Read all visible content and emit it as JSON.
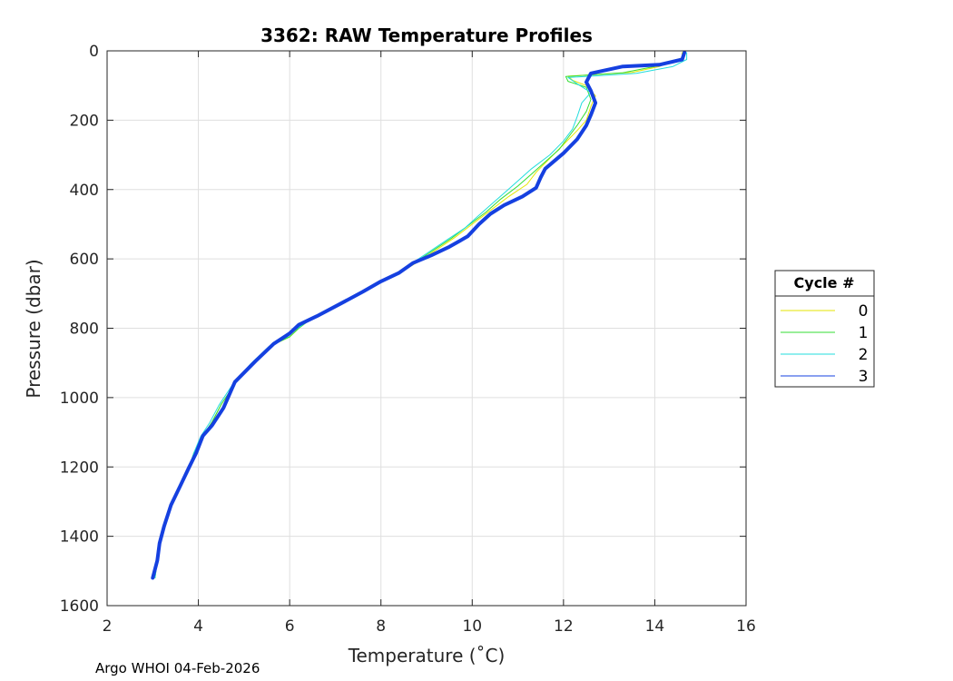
{
  "chart_data": {
    "type": "line",
    "title": "3362: RAW Temperature Profiles",
    "xlabel": "Temperature (˚C)",
    "ylabel": "Pressure (dbar)",
    "xlim": [
      2,
      16
    ],
    "ylim": [
      0,
      1600
    ],
    "y_reversed": true,
    "x_ticks": [
      2,
      4,
      6,
      8,
      10,
      12,
      14,
      16
    ],
    "y_ticks": [
      0,
      200,
      400,
      600,
      800,
      1000,
      1200,
      1400,
      1600
    ],
    "grid": true,
    "legend": {
      "title": "Cycle #",
      "placement": "right"
    },
    "series": [
      {
        "name": "0",
        "color": "#e6e600",
        "points": [
          [
            14.6,
            5
          ],
          [
            14.6,
            20
          ],
          [
            14.1,
            45
          ],
          [
            13.5,
            62
          ],
          [
            12.1,
            73
          ],
          [
            12.2,
            85
          ],
          [
            12.5,
            100
          ],
          [
            12.7,
            130
          ],
          [
            12.6,
            160
          ],
          [
            12.5,
            200
          ],
          [
            12.3,
            230
          ],
          [
            12.0,
            270
          ],
          [
            11.7,
            310
          ],
          [
            11.4,
            350
          ],
          [
            11.2,
            385
          ],
          [
            10.8,
            420
          ],
          [
            10.4,
            460
          ],
          [
            10.0,
            500
          ],
          [
            9.6,
            540
          ],
          [
            9.2,
            575
          ],
          [
            8.8,
            610
          ],
          [
            8.4,
            640
          ],
          [
            8.0,
            665
          ],
          [
            7.5,
            700
          ],
          [
            7.0,
            735
          ],
          [
            6.5,
            770
          ],
          [
            6.2,
            800
          ],
          [
            6.0,
            825
          ],
          [
            5.6,
            850
          ],
          [
            5.2,
            900
          ],
          [
            4.8,
            960
          ],
          [
            4.5,
            1020
          ],
          [
            4.3,
            1070
          ],
          [
            4.1,
            1110
          ],
          [
            3.9,
            1160
          ],
          [
            3.8,
            1200
          ],
          [
            3.6,
            1260
          ],
          [
            3.4,
            1310
          ],
          [
            3.25,
            1370
          ],
          [
            3.15,
            1420
          ],
          [
            3.1,
            1470
          ],
          [
            3.05,
            1520
          ]
        ]
      },
      {
        "name": "1",
        "color": "#33dd33",
        "points": [
          [
            14.65,
            5
          ],
          [
            14.6,
            22
          ],
          [
            14.0,
            45
          ],
          [
            13.3,
            63
          ],
          [
            12.05,
            74
          ],
          [
            12.1,
            88
          ],
          [
            12.5,
            105
          ],
          [
            12.6,
            140
          ],
          [
            12.5,
            175
          ],
          [
            12.3,
            215
          ],
          [
            12.1,
            250
          ],
          [
            11.9,
            285
          ],
          [
            11.6,
            320
          ],
          [
            11.3,
            355
          ],
          [
            11.0,
            390
          ],
          [
            10.6,
            430
          ],
          [
            10.3,
            465
          ],
          [
            9.95,
            500
          ],
          [
            9.55,
            540
          ],
          [
            9.15,
            575
          ],
          [
            8.75,
            610
          ],
          [
            8.35,
            640
          ],
          [
            7.95,
            665
          ],
          [
            7.5,
            700
          ],
          [
            7.0,
            735
          ],
          [
            6.5,
            770
          ],
          [
            6.2,
            800
          ],
          [
            6.0,
            825
          ],
          [
            5.6,
            850
          ],
          [
            5.2,
            900
          ],
          [
            4.8,
            960
          ],
          [
            4.5,
            1020
          ],
          [
            4.3,
            1070
          ],
          [
            4.1,
            1110
          ],
          [
            3.9,
            1160
          ],
          [
            3.8,
            1200
          ],
          [
            3.6,
            1260
          ],
          [
            3.4,
            1310
          ],
          [
            3.25,
            1370
          ],
          [
            3.15,
            1420
          ],
          [
            3.1,
            1470
          ],
          [
            3.05,
            1520
          ]
        ]
      },
      {
        "name": "2",
        "color": "#22dddd",
        "points": [
          [
            14.7,
            5
          ],
          [
            14.7,
            25
          ],
          [
            14.4,
            45
          ],
          [
            13.6,
            65
          ],
          [
            12.1,
            77
          ],
          [
            12.3,
            95
          ],
          [
            12.6,
            120
          ],
          [
            12.4,
            150
          ],
          [
            12.3,
            190
          ],
          [
            12.2,
            225
          ],
          [
            12.0,
            260
          ],
          [
            11.7,
            300
          ],
          [
            11.3,
            340
          ],
          [
            11.0,
            375
          ],
          [
            10.7,
            410
          ],
          [
            10.4,
            445
          ],
          [
            10.1,
            480
          ],
          [
            9.85,
            510
          ],
          [
            9.45,
            545
          ],
          [
            9.05,
            580
          ],
          [
            8.65,
            615
          ],
          [
            8.3,
            645
          ],
          [
            7.9,
            670
          ],
          [
            7.45,
            705
          ],
          [
            6.95,
            740
          ],
          [
            6.45,
            775
          ],
          [
            6.15,
            802
          ],
          [
            5.95,
            825
          ],
          [
            5.55,
            852
          ],
          [
            5.15,
            902
          ],
          [
            4.75,
            962
          ],
          [
            4.45,
            1022
          ],
          [
            4.25,
            1072
          ],
          [
            4.05,
            1112
          ],
          [
            3.9,
            1160
          ],
          [
            3.8,
            1200
          ],
          [
            3.6,
            1260
          ],
          [
            3.4,
            1310
          ],
          [
            3.25,
            1370
          ],
          [
            3.15,
            1420
          ],
          [
            3.1,
            1470
          ],
          [
            3.05,
            1520
          ]
        ]
      },
      {
        "name": "3",
        "color": "#1540e0",
        "points": [
          [
            14.65,
            5
          ],
          [
            14.6,
            25
          ],
          [
            14.1,
            40
          ],
          [
            13.3,
            45
          ],
          [
            12.6,
            65
          ],
          [
            12.5,
            90
          ],
          [
            12.6,
            115
          ],
          [
            12.7,
            150
          ],
          [
            12.6,
            185
          ],
          [
            12.5,
            215
          ],
          [
            12.3,
            255
          ],
          [
            12.0,
            295
          ],
          [
            11.6,
            340
          ],
          [
            11.5,
            365
          ],
          [
            11.4,
            395
          ],
          [
            11.1,
            420
          ],
          [
            10.7,
            445
          ],
          [
            10.4,
            470
          ],
          [
            10.15,
            500
          ],
          [
            9.9,
            535
          ],
          [
            9.5,
            565
          ],
          [
            9.1,
            590
          ],
          [
            8.7,
            612
          ],
          [
            8.4,
            640
          ],
          [
            8.0,
            665
          ],
          [
            7.6,
            695
          ],
          [
            7.1,
            730
          ],
          [
            6.6,
            765
          ],
          [
            6.2,
            790
          ],
          [
            6.0,
            815
          ],
          [
            5.65,
            845
          ],
          [
            5.25,
            895
          ],
          [
            4.8,
            955
          ],
          [
            4.55,
            1030
          ],
          [
            4.3,
            1080
          ],
          [
            4.1,
            1110
          ],
          [
            3.95,
            1160
          ],
          [
            3.8,
            1200
          ],
          [
            3.6,
            1255
          ],
          [
            3.4,
            1310
          ],
          [
            3.25,
            1370
          ],
          [
            3.15,
            1420
          ],
          [
            3.1,
            1470
          ],
          [
            3.0,
            1520
          ]
        ]
      }
    ]
  },
  "footer": "Argo WHOI 04-Feb-2026"
}
